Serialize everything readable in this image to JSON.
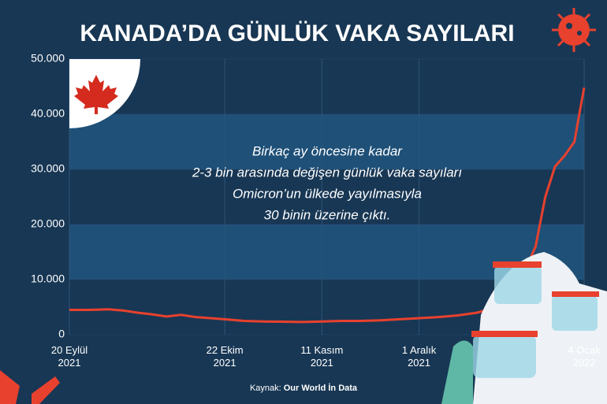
{
  "chart_data": {
    "type": "line",
    "title": "KANADA’DA GÜNLÜK VAKA SAYILARI",
    "annotation": [
      "Birkaç ay öncesine kadar",
      "2-3 bin arasında değişen günlük vaka sayıları",
      "Omicron’un ülkede yayılmasıyla",
      "30 binin üzerine çıktı."
    ],
    "source_label": "Kaynak:",
    "source": "Our World İn Data",
    "x": [
      "2021-09-20",
      "2021-09-24",
      "2021-09-28",
      "2021-10-01",
      "2021-10-04",
      "2021-10-07",
      "2021-10-10",
      "2021-10-13",
      "2021-10-16",
      "2021-10-19",
      "2021-10-22",
      "2021-10-26",
      "2021-10-30",
      "2021-11-03",
      "2021-11-07",
      "2021-11-11",
      "2021-11-15",
      "2021-11-19",
      "2021-11-23",
      "2021-11-27",
      "2021-12-01",
      "2021-12-05",
      "2021-12-09",
      "2021-12-13",
      "2021-12-17",
      "2021-12-20",
      "2021-12-23",
      "2021-12-25",
      "2021-12-27",
      "2021-12-29",
      "2021-12-31",
      "2022-01-02",
      "2022-01-03",
      "2022-01-04"
    ],
    "series": [
      {
        "color": "#e8412e",
        "values": [
          4500,
          4500,
          4600,
          4400,
          4000,
          3700,
          3300,
          3600,
          3200,
          3000,
          2800,
          2500,
          2400,
          2350,
          2300,
          2400,
          2500,
          2500,
          2600,
          2800,
          3000,
          3200,
          3500,
          4000,
          5000,
          7000,
          12000,
          16000,
          25000,
          30500,
          32500,
          35000,
          40000,
          44800
        ]
      }
    ],
    "xlim": [
      "2021-09-20",
      "2022-01-04"
    ],
    "xticks": [
      {
        "value": "2021-09-20",
        "label": "20 Eylül\n2021"
      },
      {
        "value": "2021-10-22",
        "label": "22 Ekim\n2021"
      },
      {
        "value": "2021-11-11",
        "label": "11 Kasım\n2021"
      },
      {
        "value": "2021-12-01",
        "label": "1 Aralık\n2021"
      },
      {
        "value": "2022-01-04",
        "label": "4 Ocak\n2022"
      }
    ],
    "ylim": [
      0,
      50000
    ],
    "yticks": [
      0,
      {
        "value": 10000,
        "label": "10.000"
      },
      {
        "value": 20000,
        "label": "20.000"
      },
      {
        "value": 30000,
        "label": "30.000"
      },
      {
        "value": 40000,
        "label": "40.000"
      },
      {
        "value": 50000,
        "label": "50.000"
      }
    ],
    "grid": true,
    "bands": true
  }
}
